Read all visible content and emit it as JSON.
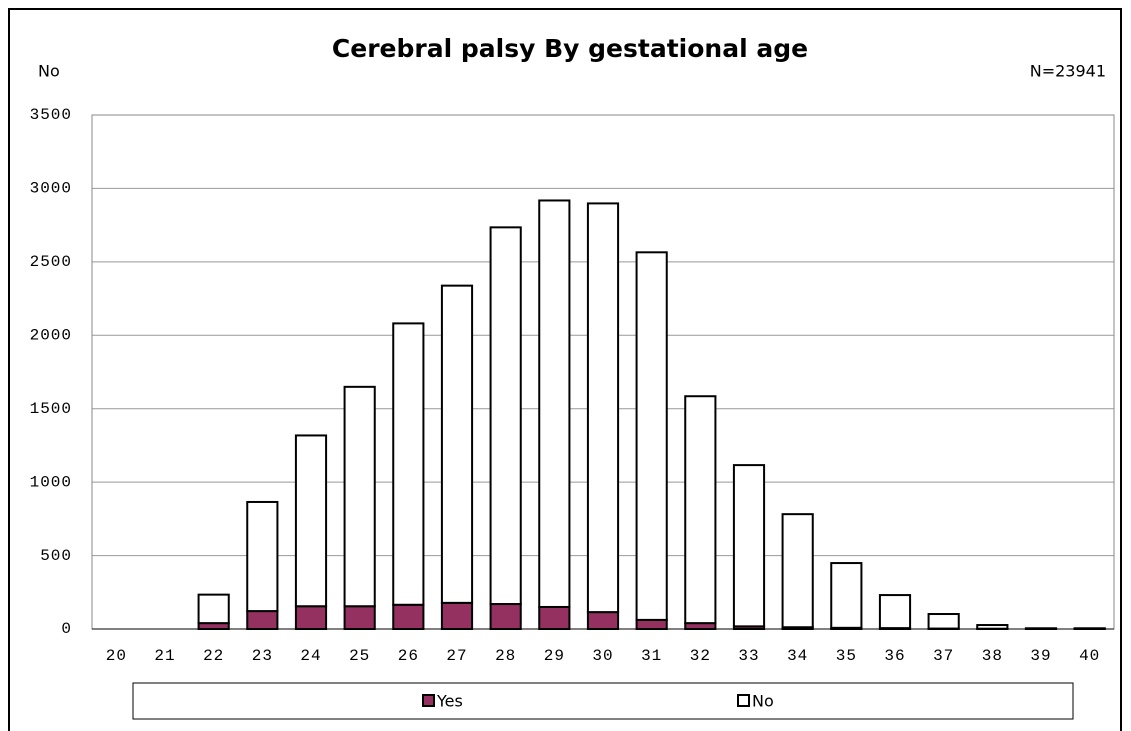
{
  "chart_data": {
    "type": "stacked_bar",
    "title": "Cerebral palsy By gestational age",
    "y_label": "No",
    "annotation": "N=23941",
    "categories": [
      "20",
      "21",
      "22",
      "23",
      "24",
      "25",
      "26",
      "27",
      "28",
      "29",
      "30",
      "31",
      "32",
      "33",
      "34",
      "35",
      "36",
      "37",
      "38",
      "39",
      "40"
    ],
    "series": [
      {
        "name": "Yes",
        "color": "#953161",
        "values": [
          0,
          0,
          40,
          122,
          155,
          155,
          165,
          178,
          170,
          150,
          115,
          62,
          40,
          18,
          12,
          8,
          6,
          3,
          2,
          1,
          1
        ]
      },
      {
        "name": "No",
        "color": "#ffffff",
        "values": [
          0,
          0,
          194,
          743,
          1163,
          1494,
          1916,
          2160,
          2565,
          2768,
          2783,
          2503,
          1545,
          1098,
          770,
          441,
          225,
          99,
          25,
          4,
          4
        ]
      }
    ],
    "ylim": [
      0,
      3500
    ],
    "yticks": [
      0,
      500,
      1000,
      1500,
      2000,
      2500,
      3000,
      3500
    ],
    "grid": true,
    "legend": "bottom"
  }
}
